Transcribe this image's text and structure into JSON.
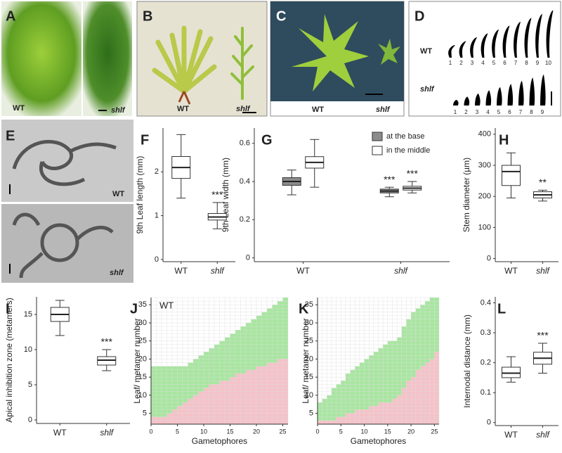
{
  "photo_panels": [
    {
      "letter": "A",
      "labels": [
        "WT",
        "shlf"
      ]
    },
    {
      "letter": "B",
      "labels": [
        "WT",
        "shlf"
      ]
    },
    {
      "letter": "C",
      "labels": [
        "WT",
        "shlf"
      ]
    },
    {
      "letter": "D",
      "labels": [
        "WT",
        "shlf"
      ],
      "wt_numbers": [
        1,
        2,
        3,
        4,
        5,
        6,
        7,
        8,
        9,
        10
      ],
      "shlf_numbers": [
        1,
        2,
        3,
        4,
        5,
        6,
        7,
        8,
        9
      ]
    },
    {
      "letter": "E",
      "labels": [
        "WT",
        "shlf"
      ]
    }
  ],
  "chart_data": [
    {
      "type": "box",
      "panel": "F",
      "ylabel": "9th Leaf length (mm)",
      "categories": [
        "WT",
        "shlf"
      ],
      "ylim": [
        -0.05,
        3
      ],
      "yticks": [
        0,
        1,
        2
      ],
      "series": [
        {
          "color": "#ffffff",
          "values": [
            {
              "min": 1.4,
              "q1": 1.85,
              "median": 2.1,
              "q3": 2.35,
              "max": 2.85
            },
            {
              "min": 0.7,
              "q1": 0.9,
              "median": 0.97,
              "q3": 1.05,
              "max": 1.3
            }
          ],
          "significance": [
            null,
            "***"
          ]
        }
      ]
    },
    {
      "type": "box",
      "panel": "G",
      "ylabel": "9th Leaf width (mm)",
      "categories": [
        "WT",
        "shlf"
      ],
      "ylim": [
        -0.02,
        0.68
      ],
      "yticks": [
        0.0,
        0.2,
        0.4,
        0.6
      ],
      "legend": "top-right",
      "series": [
        {
          "name": "at the base",
          "color": "#8c8c8c",
          "values": [
            {
              "min": 0.33,
              "q1": 0.38,
              "median": 0.4,
              "q3": 0.42,
              "max": 0.46
            },
            {
              "min": 0.32,
              "q1": 0.34,
              "median": 0.35,
              "q3": 0.36,
              "max": 0.37
            }
          ],
          "significance": [
            null,
            "***"
          ]
        },
        {
          "name": "in the middle",
          "color": "#ffffff",
          "values": [
            {
              "min": 0.37,
              "q1": 0.47,
              "median": 0.5,
              "q3": 0.53,
              "max": 0.62
            },
            {
              "min": 0.34,
              "q1": 0.355,
              "median": 0.365,
              "q3": 0.375,
              "max": 0.4
            }
          ],
          "significance": [
            null,
            "***"
          ]
        }
      ]
    },
    {
      "type": "box",
      "panel": "H",
      "ylabel": "Stem diameter (µm)",
      "categories": [
        "WT",
        "shlf"
      ],
      "ylim": [
        -10,
        420
      ],
      "yticks": [
        0,
        100,
        200,
        300,
        400
      ],
      "series": [
        {
          "color": "#ffffff",
          "values": [
            {
              "min": 195,
              "q1": 235,
              "median": 280,
              "q3": 300,
              "max": 340
            },
            {
              "min": 185,
              "q1": 195,
              "median": 205,
              "q3": 215,
              "max": 220
            }
          ],
          "significance": [
            null,
            "**"
          ]
        }
      ]
    },
    {
      "type": "box",
      "panel": "I",
      "ylabel": "Apical inhibition zone (metamers)",
      "categories": [
        "WT",
        "shlf"
      ],
      "ylim": [
        -0.5,
        17.5
      ],
      "yticks": [
        0,
        5,
        10,
        15
      ],
      "series": [
        {
          "color": "#ffffff",
          "values": [
            {
              "min": 12,
              "q1": 14,
              "median": 15,
              "q3": 16,
              "max": 17
            },
            {
              "min": 7,
              "q1": 7.8,
              "median": 8.5,
              "q3": 9,
              "max": 10
            }
          ],
          "significance": [
            null,
            "***"
          ]
        }
      ]
    },
    {
      "type": "stacked-grid",
      "panel": "J",
      "annotation": "WT",
      "xlabel": "Gametophores",
      "ylabel": "Leaf/ metamer number",
      "xlim": [
        0,
        26
      ],
      "xticks": [
        0,
        5,
        10,
        15,
        20,
        25
      ],
      "ylim": [
        2,
        37
      ],
      "yticks": [
        5,
        10,
        15,
        20,
        25,
        30,
        35
      ],
      "x": [
        0,
        1,
        2,
        3,
        4,
        5,
        6,
        7,
        8,
        9,
        10,
        11,
        12,
        13,
        14,
        15,
        16,
        17,
        18,
        19,
        20,
        21,
        22,
        23,
        24,
        25
      ],
      "series": [
        {
          "color": "#f4c2c8",
          "values": [
            4,
            4,
            4,
            5,
            6,
            7,
            8,
            9,
            10,
            11,
            12,
            13,
            13,
            14,
            14,
            15,
            16,
            16,
            17,
            17,
            18,
            18,
            19,
            19,
            20,
            20
          ]
        },
        {
          "color": "#a8e6a0",
          "values": [
            14,
            14,
            14,
            13,
            12,
            11,
            10,
            10,
            10,
            10,
            10,
            10,
            11,
            11,
            12,
            12,
            12,
            13,
            13,
            14,
            14,
            15,
            15,
            16,
            16,
            17
          ]
        }
      ]
    },
    {
      "type": "stacked-grid",
      "panel": "K",
      "xlabel": "Gametophores",
      "ylabel": "Leaf/ metamer number",
      "xlim": [
        0,
        26
      ],
      "xticks": [
        0,
        5,
        10,
        15,
        20,
        25
      ],
      "ylim": [
        2,
        37
      ],
      "yticks": [
        5,
        10,
        15,
        20,
        25,
        30,
        35
      ],
      "x": [
        0,
        1,
        2,
        3,
        4,
        5,
        6,
        7,
        8,
        9,
        10,
        11,
        12,
        13,
        14,
        15,
        16,
        17,
        18,
        19,
        20,
        21,
        22,
        23,
        24,
        25
      ],
      "series": [
        {
          "color": "#f4c2c8",
          "values": [
            3,
            3,
            3,
            3,
            4,
            4,
            5,
            5,
            6,
            6,
            6,
            7,
            7,
            8,
            8,
            8,
            9,
            10,
            12,
            14,
            15,
            17,
            18,
            19,
            20,
            22
          ]
        },
        {
          "color": "#a8e6a0",
          "values": [
            5,
            6,
            7,
            9,
            9,
            10,
            11,
            12,
            12,
            13,
            14,
            14,
            15,
            15,
            16,
            17,
            16,
            16,
            17,
            17,
            18,
            17,
            17,
            17,
            17,
            15
          ]
        }
      ]
    },
    {
      "type": "box",
      "panel": "L",
      "ylabel": "Internodal distance (mm)",
      "categories": [
        "WT",
        "shlf"
      ],
      "ylim": [
        -0.01,
        0.42
      ],
      "yticks": [
        0.0,
        0.1,
        0.2,
        0.3,
        0.4
      ],
      "series": [
        {
          "color": "#ffffff",
          "values": [
            {
              "min": 0.135,
              "q1": 0.15,
              "median": 0.165,
              "q3": 0.185,
              "max": 0.22
            },
            {
              "min": 0.165,
              "q1": 0.195,
              "median": 0.215,
              "q3": 0.235,
              "max": 0.265
            }
          ],
          "significance": [
            null,
            "***"
          ]
        }
      ]
    }
  ]
}
